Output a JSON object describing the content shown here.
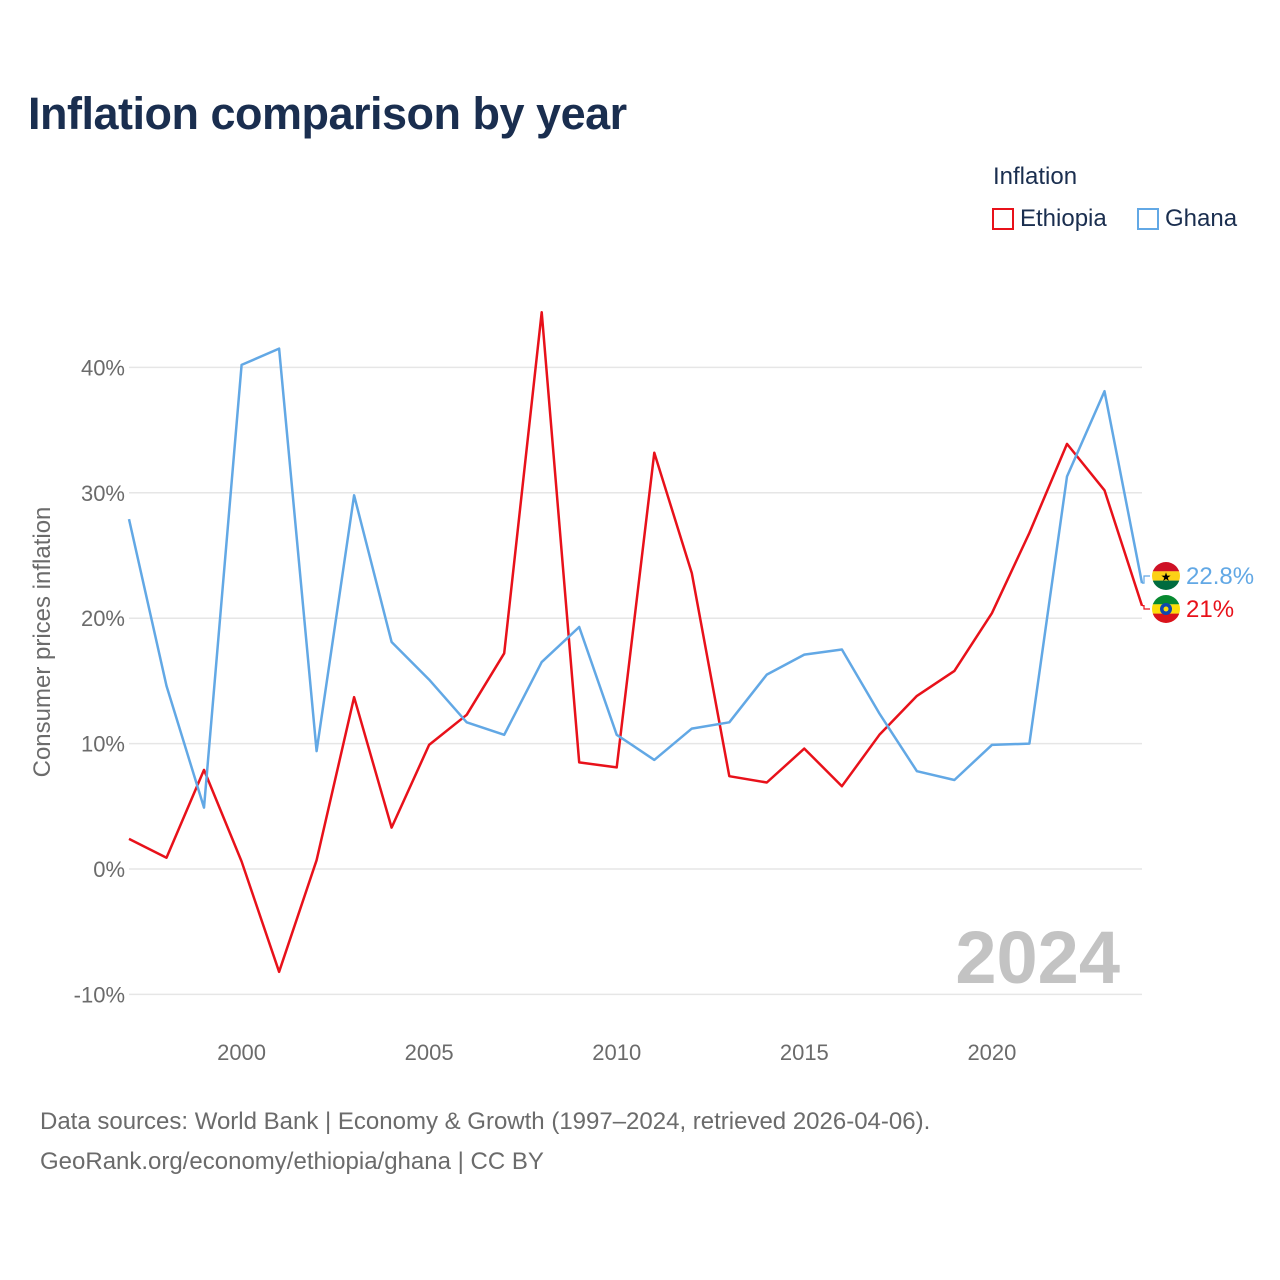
{
  "title": "Inflation comparison by year",
  "legend": {
    "title": "Inflation",
    "items": [
      {
        "name": "Ethiopia",
        "color": "#e8111a"
      },
      {
        "name": "Ghana",
        "color": "#62a8e5"
      }
    ]
  },
  "footer": {
    "line1": "Data sources: World Bank | Economy & Growth (1997–2024, retrieved 2026-04-06).",
    "line2": "GeoRank.org/economy/ethiopia/ghana | CC BY"
  },
  "chart_data": {
    "type": "line",
    "ylabel": "Consumer prices inflation",
    "xlabel": "",
    "watermark_year": "2024",
    "x": [
      1997,
      1998,
      1999,
      2000,
      2001,
      2002,
      2003,
      2004,
      2005,
      2006,
      2007,
      2008,
      2009,
      2010,
      2011,
      2012,
      2013,
      2014,
      2015,
      2016,
      2017,
      2018,
      2019,
      2020,
      2021,
      2022,
      2023,
      2024
    ],
    "xlim": [
      1997,
      2024
    ],
    "ylim": [
      -10,
      45
    ],
    "yticks": [
      -10,
      0,
      10,
      20,
      30,
      40
    ],
    "ytick_labels": [
      "-10%",
      "0%",
      "10%",
      "20%",
      "30%",
      "40%"
    ],
    "xticks": [
      2000,
      2005,
      2010,
      2015,
      2020
    ],
    "xtick_labels": [
      "2000",
      "2005",
      "2010",
      "2015",
      "2020"
    ],
    "grid": true,
    "series": [
      {
        "name": "Ethiopia",
        "color": "#e8111a",
        "end_label": "21%",
        "values": [
          2.4,
          0.9,
          7.9,
          0.6,
          -8.2,
          0.7,
          13.7,
          3.3,
          9.9,
          12.3,
          17.2,
          44.4,
          8.5,
          8.1,
          33.2,
          23.6,
          7.4,
          6.9,
          9.6,
          6.6,
          10.7,
          13.8,
          15.8,
          20.4,
          26.8,
          33.9,
          30.2,
          21.0
        ]
      },
      {
        "name": "Ghana",
        "color": "#62a8e5",
        "end_label": "22.8%",
        "values": [
          27.9,
          14.6,
          4.9,
          40.2,
          41.5,
          9.4,
          29.8,
          18.1,
          15.1,
          11.7,
          10.7,
          16.5,
          19.3,
          10.7,
          8.7,
          11.2,
          11.7,
          15.5,
          17.1,
          17.5,
          12.4,
          7.8,
          7.1,
          9.9,
          10.0,
          31.3,
          38.1,
          22.8
        ]
      }
    ]
  }
}
